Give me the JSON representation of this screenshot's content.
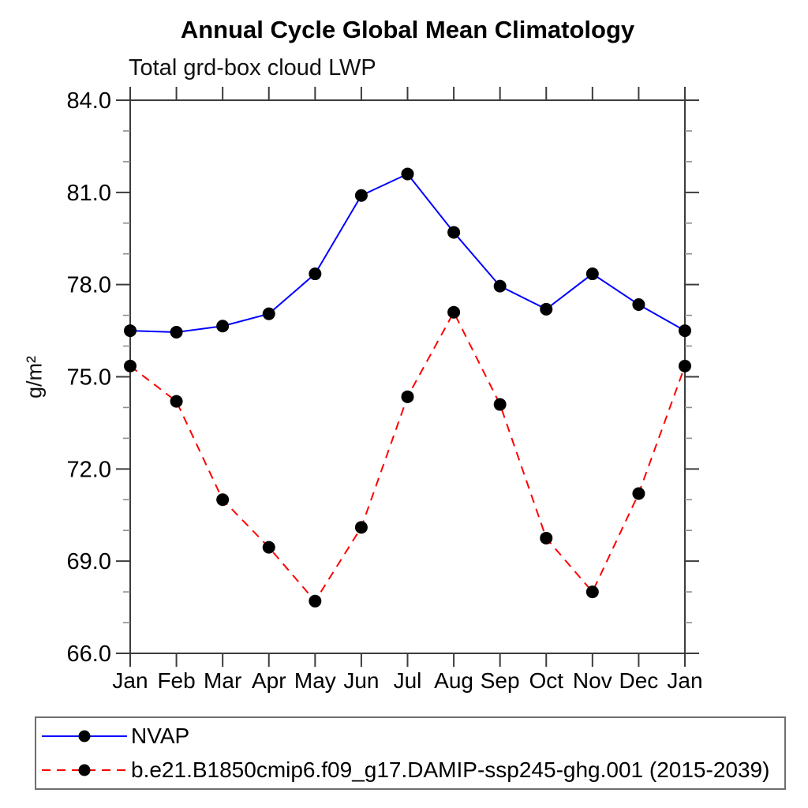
{
  "chart_data": {
    "type": "line",
    "title": "Annual Cycle Global Mean Climatology",
    "subtitle": "Total grd-box cloud LWP",
    "ylabel": "g/m²",
    "xlabel": "",
    "categories": [
      "Jan",
      "Feb",
      "Mar",
      "Apr",
      "May",
      "Jun",
      "Jul",
      "Aug",
      "Sep",
      "Oct",
      "Nov",
      "Dec",
      "Jan"
    ],
    "ylim": [
      66.0,
      84.0
    ],
    "ytick_values": [
      66,
      69,
      72,
      75,
      78,
      81,
      84
    ],
    "ytick_labels": [
      "66.0",
      "69.0",
      "72.0",
      "75.0",
      "78.0",
      "81.0",
      "84.0"
    ],
    "yminor_step": 1.0,
    "grid": false,
    "legend_position": "bottom-left-box",
    "frame_color": "#3c3c3c",
    "minor_tick_color": "#8e8e8e",
    "marker": {
      "shape": "circle",
      "color": "#000000",
      "radius": 8
    },
    "series": [
      {
        "name": "NVAP",
        "color": "#0000ff",
        "style": "solid",
        "values": [
          76.5,
          76.45,
          76.65,
          77.05,
          78.35,
          80.9,
          81.6,
          79.7,
          77.95,
          77.2,
          78.35,
          77.35,
          76.5
        ]
      },
      {
        "name": "b.e21.B1850cmip6.f09_g17.DAMIP-ssp245-ghg.001 (2015-2039)",
        "color": "#ff0000",
        "style": "dashed",
        "values": [
          75.35,
          74.2,
          71.0,
          69.45,
          67.7,
          70.1,
          74.35,
          77.1,
          74.1,
          69.75,
          68.0,
          71.2,
          75.35
        ]
      }
    ]
  }
}
